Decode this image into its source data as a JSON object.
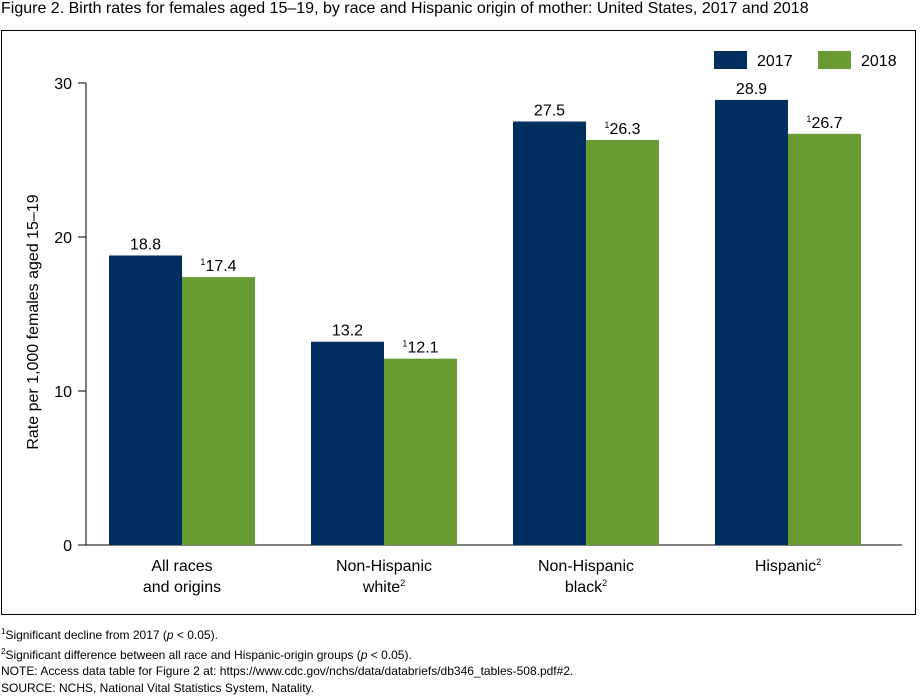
{
  "title": "Figure 2. Birth rates for females aged 15–19, by race and Hispanic origin of mother: United States, 2017 and 2018",
  "chart_data": {
    "type": "bar",
    "categories": [
      {
        "lines": [
          "All races",
          "and origins"
        ],
        "sup": ""
      },
      {
        "lines": [
          "Non-Hispanic",
          "white"
        ],
        "sup": "2"
      },
      {
        "lines": [
          "Non-Hispanic",
          "black"
        ],
        "sup": "2"
      },
      {
        "lines": [
          "Hispanic"
        ],
        "sup": "2"
      }
    ],
    "series": [
      {
        "name": "2017",
        "color": "#002f5f",
        "values": [
          18.8,
          13.2,
          27.5,
          28.9
        ],
        "markers": [
          "",
          "",
          "",
          ""
        ]
      },
      {
        "name": "2018",
        "color": "#6a9c34",
        "values": [
          17.4,
          12.1,
          26.3,
          26.7
        ],
        "markers": [
          "1",
          "1",
          "1",
          "1"
        ]
      }
    ],
    "ylabel": "Rate per 1,000 females aged 15–19",
    "ylim": [
      0,
      30
    ],
    "yticks": [
      0,
      10,
      20,
      30
    ],
    "legend_position": "top-right",
    "grid": false
  },
  "footnotes": {
    "note1_marker": "1",
    "note1_text": "Significant decline from 2017 (",
    "note1_p": "p",
    "note1_tail": " < 0.05).",
    "note2_marker": "2",
    "note2_text": "Significant difference between all race and Hispanic-origin groups (",
    "note2_p": "p",
    "note2_tail": " < 0.05).",
    "note3": "NOTE: Access data table for Figure 2 at: https://www.cdc.gov/nchs/data/databriefs/db346_tables-508.pdf#2.",
    "source": "SOURCE: NCHS, National Vital Statistics System, Natality."
  }
}
